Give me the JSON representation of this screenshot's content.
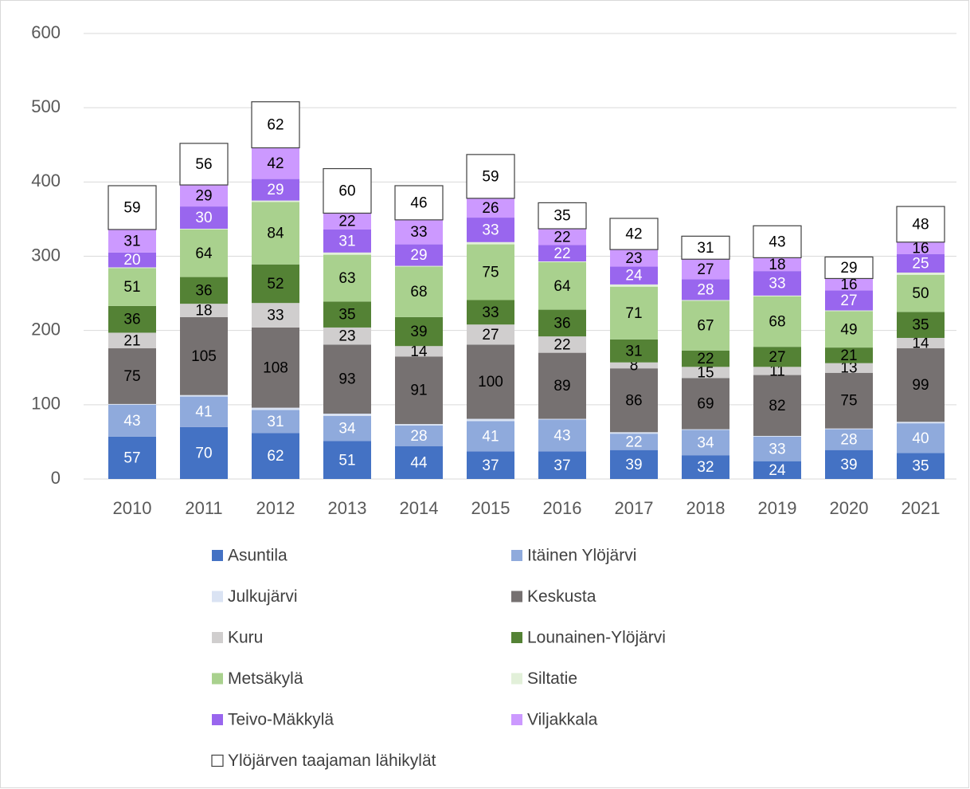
{
  "chart_data": {
    "type": "stacked_bar",
    "categories": [
      "2010",
      "2011",
      "2012",
      "2013",
      "2014",
      "2015",
      "2016",
      "2017",
      "2018",
      "2019",
      "2020",
      "2021"
    ],
    "series": [
      {
        "name": "Asuntila",
        "color": "#4472c4",
        "label_color": "#ffffff",
        "data_labels": true,
        "values": [
          57,
          70,
          62,
          51,
          44,
          37,
          37,
          39,
          32,
          24,
          39,
          35
        ]
      },
      {
        "name": "Itäinen Ylöjärvi",
        "color": "#8faadc",
        "label_color": "#ffffff",
        "data_labels": true,
        "values": [
          43,
          41,
          31,
          34,
          28,
          41,
          43,
          22,
          34,
          33,
          28,
          40
        ]
      },
      {
        "name": "Julkujärvi",
        "color": "#dae3f3",
        "label_color": "#000000",
        "data_labels": false,
        "values": [
          1,
          2,
          3,
          3,
          2,
          3,
          1,
          2,
          1,
          1,
          1,
          2
        ]
      },
      {
        "name": "Keskusta",
        "color": "#767171",
        "label_color": "#000000",
        "data_labels": true,
        "values": [
          75,
          105,
          108,
          93,
          91,
          100,
          89,
          86,
          69,
          82,
          75,
          99
        ]
      },
      {
        "name": "Kuru",
        "color": "#d0cece",
        "label_color": "#000000",
        "data_labels": true,
        "values": [
          21,
          18,
          33,
          23,
          14,
          27,
          22,
          8,
          15,
          11,
          13,
          14
        ]
      },
      {
        "name": "Lounainen-Ylöjärvi",
        "color": "#548235",
        "label_color": "#000000",
        "data_labels": true,
        "values": [
          36,
          36,
          52,
          35,
          39,
          33,
          36,
          31,
          22,
          27,
          21,
          35
        ]
      },
      {
        "name": "Metsäkylä",
        "color": "#a9d18e",
        "label_color": "#000000",
        "data_labels": true,
        "values": [
          51,
          64,
          84,
          63,
          68,
          75,
          64,
          71,
          67,
          68,
          49,
          50
        ]
      },
      {
        "name": "Siltatie",
        "color": "#e2f0d9",
        "label_color": "#000000",
        "data_labels": false,
        "values": [
          1,
          1,
          2,
          3,
          1,
          3,
          1,
          3,
          1,
          1,
          1,
          3
        ]
      },
      {
        "name": "Teivo-Mäkkylä",
        "color": "#9966ee",
        "label_color": "#ffffff",
        "data_labels": true,
        "values": [
          20,
          30,
          29,
          31,
          29,
          33,
          22,
          24,
          28,
          33,
          27,
          25
        ]
      },
      {
        "name": "Viljakkala",
        "color": "#cc99ff",
        "label_color": "#000000",
        "data_labels": true,
        "values": [
          31,
          29,
          42,
          22,
          33,
          26,
          22,
          23,
          27,
          18,
          16,
          16
        ]
      },
      {
        "name": "Ylöjärven taajaman lähikylät",
        "color": "#ffffff",
        "label_color": "#000000",
        "data_labels": true,
        "values": [
          59,
          56,
          62,
          60,
          46,
          59,
          35,
          42,
          31,
          43,
          29,
          48
        ]
      }
    ],
    "ylim": [
      0,
      600
    ],
    "yticks": [
      0,
      100,
      200,
      300,
      400,
      500,
      600
    ],
    "grid": true
  }
}
